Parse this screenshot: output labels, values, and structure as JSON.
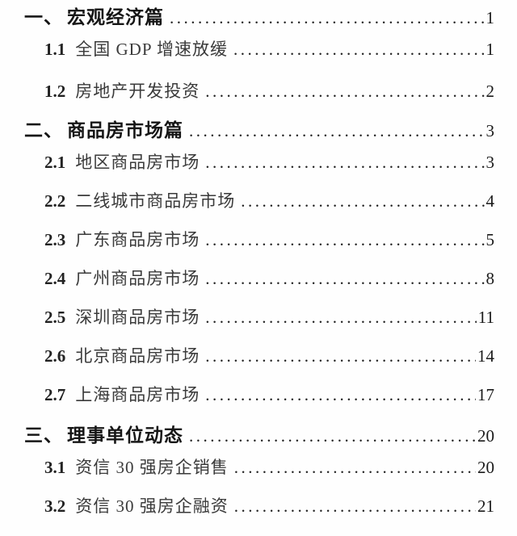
{
  "page": {
    "background": "#fefefe",
    "text_color": "#1c1c1c"
  },
  "toc": {
    "items": [
      {
        "level": 1,
        "num": "一、",
        "title": "宏观经济篇",
        "page": "1"
      },
      {
        "level": 2,
        "num": "1.1",
        "title": "全国 GDP 增速放缓",
        "page": "1"
      },
      {
        "level": 2,
        "num": "1.2",
        "title": "房地产开发投资",
        "page": "2"
      },
      {
        "level": 1,
        "num": "二、",
        "title": "商品房市场篇",
        "page": "3"
      },
      {
        "level": 2,
        "num": "2.1",
        "title": "地区商品房市场",
        "page": "3"
      },
      {
        "level": 2,
        "num": "2.2",
        "title": "二线城市商品房市场",
        "page": "4"
      },
      {
        "level": 2,
        "num": "2.3",
        "title": "广东商品房市场",
        "page": "5"
      },
      {
        "level": 2,
        "num": "2.4",
        "title": "广州商品房市场",
        "page": "8"
      },
      {
        "level": 2,
        "num": "2.5",
        "title": "深圳商品房市场",
        "page": "11"
      },
      {
        "level": 2,
        "num": "2.6",
        "title": "北京商品房市场",
        "page": "14"
      },
      {
        "level": 2,
        "num": "2.7",
        "title": "上海商品房市场",
        "page": "17"
      },
      {
        "level": 1,
        "num": "三、",
        "title": "理事单位动态",
        "page": "20"
      },
      {
        "level": 2,
        "num": "3.1",
        "title": "资信 30 强房企销售",
        "page": "20"
      },
      {
        "level": 2,
        "num": "3.2",
        "title": "资信 30 强房企融资",
        "page": "21"
      }
    ]
  }
}
